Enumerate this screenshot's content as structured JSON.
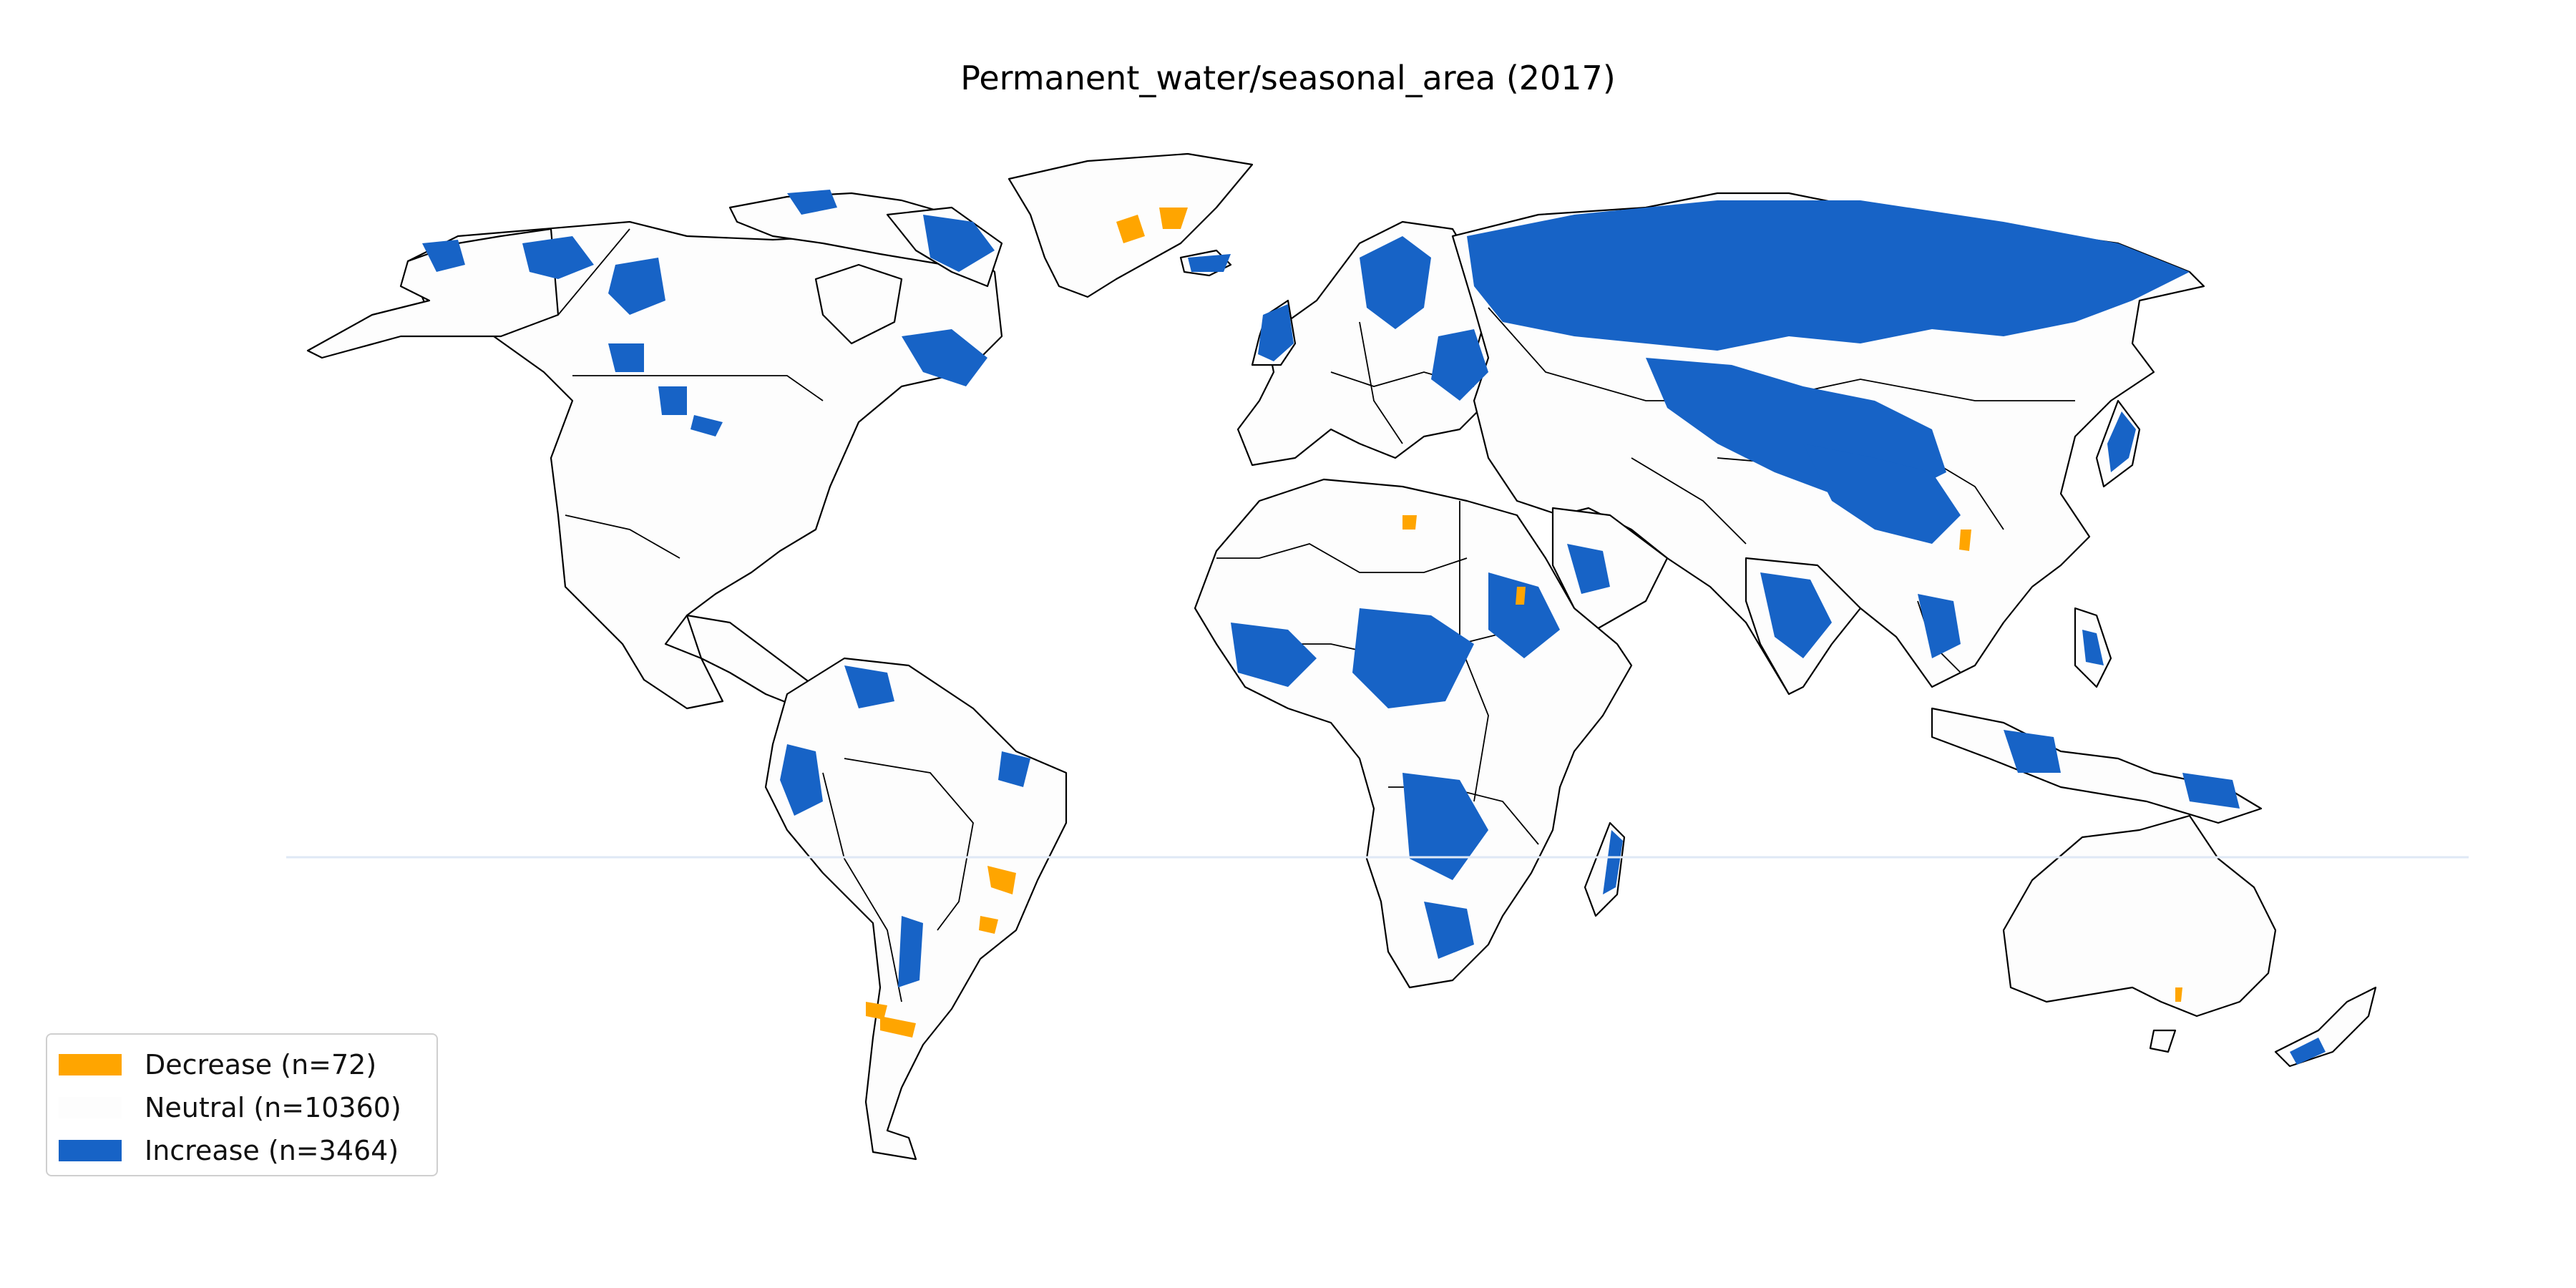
{
  "title": "Permanent_water/seasonal_area (2017)",
  "colors": {
    "decrease": "#FFA500",
    "neutral": "#FDFDFD",
    "increase": "#1763C6",
    "border": "#000000"
  },
  "legend": {
    "items": [
      {
        "key": "decrease",
        "label": "Decrease (n=72)"
      },
      {
        "key": "neutral",
        "label": "Neutral (n=10360)"
      },
      {
        "key": "increase",
        "label": "Increase (n=3464)"
      }
    ]
  }
}
